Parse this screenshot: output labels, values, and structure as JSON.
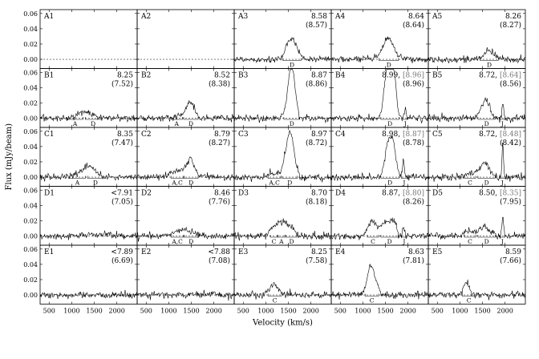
{
  "chart_data": {
    "type": "line",
    "xlabel": "Velocity (km/s)",
    "ylabel": "Flux (mJy/beam)",
    "xlim": [
      300,
      2450
    ],
    "ylim": [
      -0.012,
      0.065
    ],
    "xticks": [
      "500",
      "1000",
      "1500",
      "2000"
    ],
    "yticks": [
      "0.00",
      "0.02",
      "0.04",
      "0.06"
    ],
    "rows": [
      "A",
      "B",
      "C",
      "D",
      "E"
    ],
    "panels": [
      {
        "id": "A1",
        "empty": true
      },
      {
        "id": "A2",
        "empty": true
      },
      {
        "id": "A3",
        "main": "8.58",
        "sub": "(8.57)",
        "sub_color": "#1a8f1a",
        "features": [
          {
            "center": 1580,
            "width": 110,
            "amp": 0.028
          }
        ],
        "regions": [
          {
            "label": "D",
            "v0": 1380,
            "v1": 1780
          }
        ]
      },
      {
        "id": "A4",
        "main": "8.64",
        "sub": "(8.64)",
        "sub_color": "#1a8f1a",
        "features": [
          {
            "center": 1560,
            "width": 120,
            "amp": 0.027
          }
        ],
        "regions": [
          {
            "label": "D",
            "v0": 1360,
            "v1": 1790
          }
        ]
      },
      {
        "id": "A5",
        "main": "8.26",
        "sub": "(8.27)",
        "sub_color": "#1a8f1a",
        "features": [
          {
            "center": 1650,
            "width": 110,
            "amp": 0.011
          }
        ],
        "regions": [
          {
            "label": "D",
            "v0": 1450,
            "v1": 1850
          }
        ]
      },
      {
        "id": "B1",
        "main": "8.25",
        "sub": "(7.52)",
        "sub_color": "#d42020",
        "features": [
          {
            "center": 1300,
            "width": 150,
            "amp": 0.009
          }
        ],
        "regions": [
          {
            "label": "A",
            "v0": 900,
            "v1": 1250
          },
          {
            "label": "D",
            "v0": 1300,
            "v1": 1650
          }
        ]
      },
      {
        "id": "B2",
        "main": "8.52",
        "sub": "(8.38)",
        "sub_color": "#d42020",
        "features": [
          {
            "center": 1480,
            "width": 90,
            "amp": 0.022
          },
          {
            "center": 1250,
            "width": 100,
            "amp": 0.004
          }
        ],
        "regions": [
          {
            "label": "A",
            "v0": 1050,
            "v1": 1300
          },
          {
            "label": "D",
            "v0": 1330,
            "v1": 1650
          }
        ]
      },
      {
        "id": "B3",
        "main": "8.87",
        "sub": "(8.86)",
        "sub_color": "#1a8f1a",
        "features": [
          {
            "center": 1540,
            "width": 70,
            "amp": 0.052
          },
          {
            "center": 1620,
            "width": 60,
            "amp": 0.03
          }
        ],
        "regions": [
          {
            "label": "D",
            "v0": 1400,
            "v1": 1750
          }
        ]
      },
      {
        "id": "B4",
        "main": "8.99,",
        "extra": "[8.96]",
        "sub": "(8.96)",
        "sub_color": "#1a8f1a",
        "features": [
          {
            "center": 1540,
            "width": 70,
            "amp": 0.058
          },
          {
            "center": 1680,
            "width": 60,
            "amp": 0.051
          },
          {
            "center": 1620,
            "width": 60,
            "amp": 0.02
          },
          {
            "center": 1940,
            "width": 18,
            "amp": 0.012
          }
        ],
        "regions": [
          {
            "label": "D",
            "v0": 1400,
            "v1": 1800
          },
          {
            "label": "J",
            "v0": 1880,
            "v1": 2000
          }
        ]
      },
      {
        "id": "B5",
        "main": "8.72,",
        "extra": "[8.64]",
        "sub": "(8.56)",
        "sub_color": "#1a8f1a",
        "features": [
          {
            "center": 1560,
            "width": 90,
            "amp": 0.024
          },
          {
            "center": 1950,
            "width": 18,
            "amp": 0.02
          }
        ],
        "regions": [
          {
            "label": "D",
            "v0": 1400,
            "v1": 1780
          },
          {
            "label": "J",
            "v0": 1880,
            "v1": 2000
          }
        ]
      },
      {
        "id": "C1",
        "main": "8.35",
        "sub": "(7.47)",
        "sub_color": "#d42020",
        "features": [
          {
            "center": 1400,
            "width": 120,
            "amp": 0.013
          },
          {
            "center": 1150,
            "width": 150,
            "amp": 0.004
          }
        ],
        "regions": [
          {
            "label": "A",
            "v0": 950,
            "v1": 1300
          },
          {
            "label": "D",
            "v0": 1350,
            "v1": 1700
          }
        ]
      },
      {
        "id": "C2",
        "main": "8.79",
        "sub": "(8.27)",
        "sub_color": "#d42020",
        "features": [
          {
            "center": 1480,
            "width": 90,
            "amp": 0.022
          },
          {
            "center": 1200,
            "width": 160,
            "amp": 0.008
          }
        ],
        "regions": [
          {
            "label": "A,C",
            "v0": 1050,
            "v1": 1330
          },
          {
            "label": "D",
            "v0": 1340,
            "v1": 1650
          }
        ]
      },
      {
        "id": "C3",
        "main": "8.97",
        "sub": "(8.72)",
        "sub_color": "#d42020",
        "features": [
          {
            "center": 1560,
            "width": 80,
            "amp": 0.048
          },
          {
            "center": 1460,
            "width": 80,
            "amp": 0.02
          },
          {
            "center": 1200,
            "width": 120,
            "amp": 0.006
          }
        ],
        "regions": [
          {
            "label": "A,C",
            "v0": 1050,
            "v1": 1330
          },
          {
            "label": "D",
            "v0": 1360,
            "v1": 1700
          }
        ]
      },
      {
        "id": "C4",
        "main": "8.98,",
        "extra": "[8.87]",
        "sub": "(8.78)",
        "sub_color": "#1a8f1a",
        "features": [
          {
            "center": 1560,
            "width": 70,
            "amp": 0.043
          },
          {
            "center": 1680,
            "width": 60,
            "amp": 0.038
          },
          {
            "center": 1900,
            "width": 20,
            "amp": 0.024
          }
        ],
        "regions": [
          {
            "label": "D",
            "v0": 1400,
            "v1": 1800
          },
          {
            "label": "J",
            "v0": 1850,
            "v1": 1980
          }
        ]
      },
      {
        "id": "C5",
        "main": "8.72,",
        "extra": "[8.48]",
        "sub": "(8.42)",
        "sub_color": "#1a8f1a",
        "features": [
          {
            "center": 1550,
            "width": 100,
            "amp": 0.018
          },
          {
            "center": 1950,
            "width": 16,
            "amp": 0.047
          },
          {
            "center": 1250,
            "width": 120,
            "amp": 0.006
          }
        ],
        "regions": [
          {
            "label": "C",
            "v0": 1100,
            "v1": 1350
          },
          {
            "label": "D",
            "v0": 1400,
            "v1": 1780
          },
          {
            "label": "J",
            "v0": 1880,
            "v1": 2000
          }
        ]
      },
      {
        "id": "D1",
        "main": "<7.91",
        "sub": "(7.05)",
        "sub_color": "#2030d0",
        "features": [
          {
            "center": 1500,
            "width": 300,
            "amp": 0.002
          }
        ],
        "regions": []
      },
      {
        "id": "D2",
        "main": "8.46",
        "sub": "(7.76)",
        "sub_color": "#d42020",
        "features": [
          {
            "center": 1450,
            "width": 160,
            "amp": 0.006
          },
          {
            "center": 1200,
            "width": 150,
            "amp": 0.004
          }
        ],
        "regions": [
          {
            "label": "A,C",
            "v0": 1050,
            "v1": 1330
          },
          {
            "label": "D",
            "v0": 1340,
            "v1": 1650
          }
        ]
      },
      {
        "id": "D3",
        "main": "8.70",
        "sub": "(8.18)",
        "sub_color": "#d42020",
        "features": [
          {
            "center": 1200,
            "width": 100,
            "amp": 0.012
          },
          {
            "center": 1500,
            "width": 120,
            "amp": 0.014
          },
          {
            "center": 1350,
            "width": 80,
            "amp": 0.008
          }
        ],
        "regions": [
          {
            "label": "C",
            "v0": 1100,
            "v1": 1260
          },
          {
            "label": "A",
            "v0": 1270,
            "v1": 1420
          },
          {
            "label": "D",
            "v0": 1440,
            "v1": 1700
          }
        ]
      },
      {
        "id": "D4",
        "main": "8.87,",
        "extra": "[8.80]",
        "sub": "(8.26)",
        "sub_color": "#d42020",
        "features": [
          {
            "center": 1200,
            "width": 90,
            "amp": 0.021
          },
          {
            "center": 1500,
            "width": 100,
            "amp": 0.02
          },
          {
            "center": 1680,
            "width": 60,
            "amp": 0.018
          },
          {
            "center": 1900,
            "width": 20,
            "amp": 0.009
          }
        ],
        "regions": [
          {
            "label": "C",
            "v0": 1100,
            "v1": 1350
          },
          {
            "label": "D",
            "v0": 1400,
            "v1": 1780
          },
          {
            "label": "J",
            "v0": 1850,
            "v1": 1980
          }
        ]
      },
      {
        "id": "D5",
        "main": "8.50,",
        "extra": "[8.35]",
        "sub": "(7.95)",
        "sub_color": "#d42020",
        "features": [
          {
            "center": 1550,
            "width": 120,
            "amp": 0.012
          },
          {
            "center": 1950,
            "width": 18,
            "amp": 0.027
          },
          {
            "center": 1200,
            "width": 100,
            "amp": 0.006
          }
        ],
        "regions": [
          {
            "label": "C",
            "v0": 1100,
            "v1": 1350
          },
          {
            "label": "D",
            "v0": 1400,
            "v1": 1780
          },
          {
            "label": "J",
            "v0": 1880,
            "v1": 2000
          }
        ]
      },
      {
        "id": "E1",
        "main": "<7.89",
        "sub": "(6.69)",
        "sub_color": "#2030d0",
        "features": [],
        "regions": []
      },
      {
        "id": "E2",
        "main": "<7.88",
        "sub": "(7.08)",
        "sub_color": "#2030d0",
        "features": [],
        "regions": []
      },
      {
        "id": "E3",
        "main": "8.25",
        "sub": "(7.58)",
        "sub_color": "#d42020",
        "features": [
          {
            "center": 1180,
            "width": 90,
            "amp": 0.014
          }
        ],
        "regions": [
          {
            "label": "C",
            "v0": 1050,
            "v1": 1350
          }
        ]
      },
      {
        "id": "E4",
        "main": "8.63",
        "sub": "(7.81)",
        "sub_color": "#d42020",
        "features": [
          {
            "center": 1150,
            "width": 70,
            "amp": 0.028
          },
          {
            "center": 1250,
            "width": 80,
            "amp": 0.018
          }
        ],
        "regions": [
          {
            "label": "C",
            "v0": 1050,
            "v1": 1350
          }
        ]
      },
      {
        "id": "E5",
        "main": "8.59",
        "sub": "(7.66)",
        "sub_color": "#d42020",
        "features": [
          {
            "center": 1150,
            "width": 70,
            "amp": 0.015
          }
        ],
        "regions": [
          {
            "label": "C",
            "v0": 1050,
            "v1": 1350
          }
        ]
      }
    ]
  }
}
